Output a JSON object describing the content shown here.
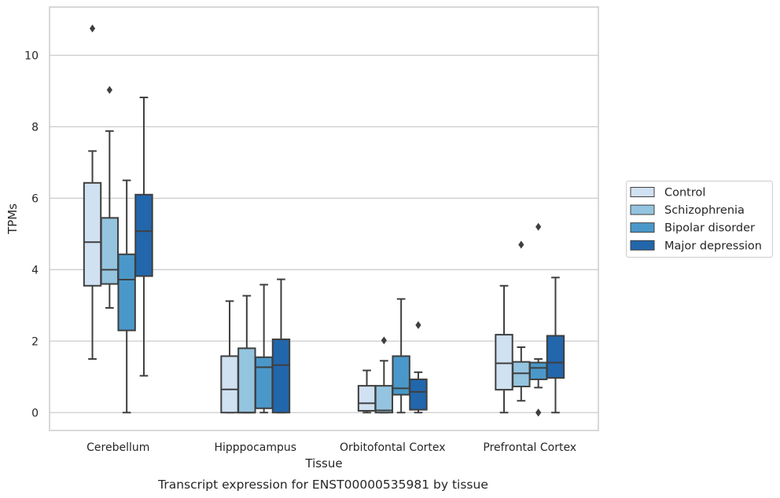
{
  "chart_data": {
    "type": "box",
    "caption": "Transcript expression for ENST00000535981 by tissue",
    "xlabel": "Tissue",
    "ylabel": "TPMs",
    "ylim": [
      -0.5,
      11.35
    ],
    "yticks": [
      0,
      2,
      4,
      6,
      8,
      10
    ],
    "grid": "horizontal",
    "legend_placement": "right",
    "categories": [
      "Cerebellum",
      "Hipppocampus",
      "Orbitofontal Cortex",
      "Prefrontal Cortex"
    ],
    "series": [
      {
        "name": "Control",
        "color": "#d0e1f2",
        "boxes": [
          {
            "whisker_low": 1.5,
            "q1": 3.55,
            "median": 4.77,
            "q3": 6.43,
            "whisker_high": 7.32,
            "outliers": [
              10.75
            ]
          },
          {
            "whisker_low": 0.0,
            "q1": 0.0,
            "median": 0.65,
            "q3": 1.58,
            "whisker_high": 3.12,
            "outliers": []
          },
          {
            "whisker_low": 0.0,
            "q1": 0.05,
            "median": 0.26,
            "q3": 0.75,
            "whisker_high": 1.18,
            "outliers": []
          },
          {
            "whisker_low": 0.0,
            "q1": 0.64,
            "median": 1.38,
            "q3": 2.18,
            "whisker_high": 3.55,
            "outliers": []
          }
        ]
      },
      {
        "name": "Schizophrenia",
        "color": "#94c4df",
        "boxes": [
          {
            "whisker_low": 2.93,
            "q1": 3.6,
            "median": 4.0,
            "q3": 5.45,
            "whisker_high": 7.88,
            "outliers": [
              9.03
            ]
          },
          {
            "whisker_low": 0.0,
            "q1": 0.0,
            "median": 0.0,
            "q3": 1.8,
            "whisker_high": 3.27,
            "outliers": []
          },
          {
            "whisker_low": 0.0,
            "q1": 0.0,
            "median": 0.06,
            "q3": 0.75,
            "whisker_high": 1.45,
            "outliers": [
              2.02
            ]
          },
          {
            "whisker_low": 0.33,
            "q1": 0.73,
            "median": 1.1,
            "q3": 1.42,
            "whisker_high": 1.83,
            "outliers": [
              4.7
            ]
          }
        ]
      },
      {
        "name": "Bipolar disorder",
        "color": "#4a98c9",
        "boxes": [
          {
            "whisker_low": 0.0,
            "q1": 2.3,
            "median": 3.72,
            "q3": 4.43,
            "whisker_high": 6.5,
            "outliers": []
          },
          {
            "whisker_low": 0.0,
            "q1": 0.12,
            "median": 1.27,
            "q3": 1.55,
            "whisker_high": 3.58,
            "outliers": []
          },
          {
            "whisker_low": 0.0,
            "q1": 0.5,
            "median": 0.68,
            "q3": 1.58,
            "whisker_high": 3.18,
            "outliers": []
          },
          {
            "whisker_low": 0.7,
            "q1": 0.93,
            "median": 1.25,
            "q3": 1.4,
            "whisker_high": 1.5,
            "outliers": [
              0.0,
              0.0,
              5.2
            ]
          }
        ]
      },
      {
        "name": "Major depression",
        "color": "#2266ac",
        "boxes": [
          {
            "whisker_low": 1.03,
            "q1": 3.82,
            "median": 5.08,
            "q3": 6.1,
            "whisker_high": 8.82,
            "outliers": []
          },
          {
            "whisker_low": 0.0,
            "q1": 0.0,
            "median": 1.33,
            "q3": 2.05,
            "whisker_high": 3.73,
            "outliers": []
          },
          {
            "whisker_low": 0.0,
            "q1": 0.08,
            "median": 0.58,
            "q3": 0.93,
            "whisker_high": 1.13,
            "outliers": [
              2.45
            ]
          },
          {
            "whisker_low": 0.0,
            "q1": 0.97,
            "median": 1.4,
            "q3": 2.15,
            "whisker_high": 3.78,
            "outliers": []
          }
        ]
      }
    ]
  }
}
